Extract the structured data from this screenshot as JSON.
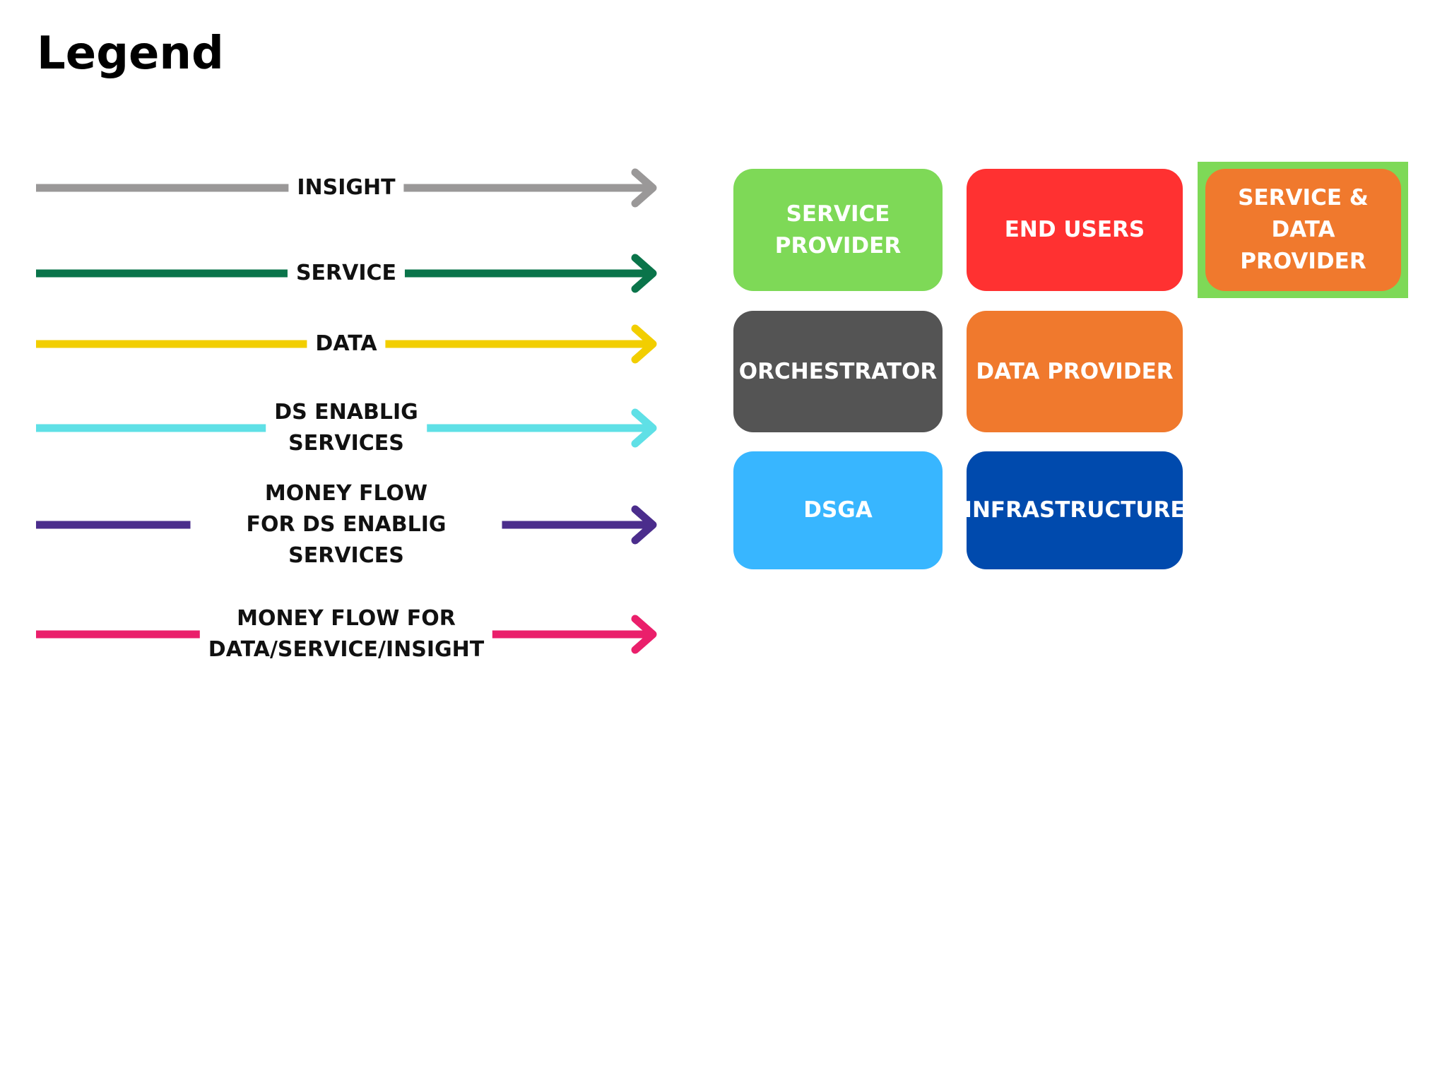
{
  "title": "Legend",
  "arrows": [
    {
      "label": "INSIGHT",
      "color": "#9a9898"
    },
    {
      "label": "SERVICE",
      "color": "#0a744a"
    },
    {
      "label": "DATA",
      "color": "#f2ce00"
    },
    {
      "label": "DS ENABLIG\nSERVICES",
      "color": "#5fe0e6"
    },
    {
      "label": "MONEY FLOW\nFOR DS ENABLIG SERVICES",
      "color": "#4b2d8c"
    },
    {
      "label": "MONEY FLOW FOR\nDATA/SERVICE/INSIGHT",
      "color": "#ea1f6b"
    }
  ],
  "boxes": [
    {
      "label": "SERVICE\nPROVIDER",
      "color": "#7ed957"
    },
    {
      "label": "END USERS",
      "color": "#ff3131"
    },
    {
      "label": "SERVICE & DATA\nPROVIDER",
      "color": "#f0792d",
      "border_color": "#7ed957"
    },
    {
      "label": "ORCHESTRATOR",
      "color": "#545454"
    },
    {
      "label": "DATA PROVIDER",
      "color": "#f0792d"
    },
    {
      "label": "DSGA",
      "color": "#38b6ff"
    },
    {
      "label": "INFRASTRUCTURE",
      "color": "#004aad"
    }
  ]
}
